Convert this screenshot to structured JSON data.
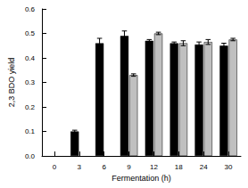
{
  "chart_data": {
    "type": "bar",
    "x_label": "Fermentation (h)",
    "y_label": "2,3 BDO yield",
    "categories": [
      "0",
      "3",
      "6",
      "9",
      "12",
      "18",
      "24",
      "30"
    ],
    "series": [
      {
        "color": "#000000",
        "values": [
          null,
          0.1,
          0.46,
          0.49,
          0.47,
          0.46,
          0.455,
          0.45
        ],
        "errors": [
          null,
          0.005,
          0.02,
          0.02,
          0.005,
          0.005,
          0.01,
          0.01
        ]
      },
      {
        "color": "#c0c0c0",
        "values": [
          null,
          null,
          null,
          0.33,
          0.5,
          0.46,
          0.465,
          0.475
        ],
        "errors": [
          null,
          null,
          null,
          0.005,
          0.005,
          0.01,
          0.01,
          0.005
        ]
      }
    ],
    "ylim": [
      0,
      0.6
    ],
    "yticks": [
      {
        "value": 0,
        "label": "0.0"
      },
      0.1,
      0.2,
      0.3,
      0.4,
      0.5,
      0.6
    ],
    "grid": false
  }
}
